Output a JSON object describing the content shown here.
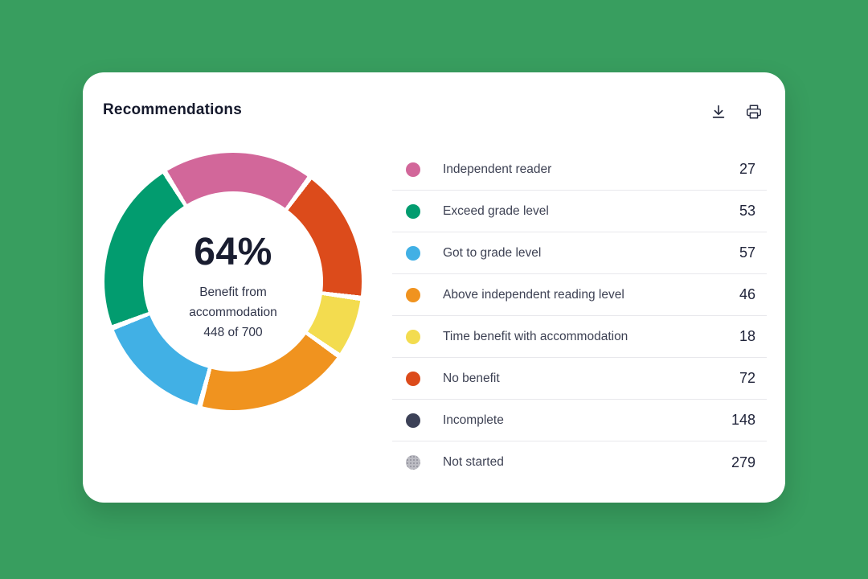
{
  "theme": {
    "page_background": "#389e5f",
    "card_background": "#ffffff",
    "divider_color": "#e8e8ec",
    "title_color": "#15192c",
    "label_color": "#3e4254",
    "value_color": "#20243a"
  },
  "header": {
    "title": "Recommendations",
    "actions": [
      {
        "name": "download",
        "icon": "download-icon"
      },
      {
        "name": "print",
        "icon": "print-icon"
      }
    ]
  },
  "chart_data": {
    "type": "pie",
    "title": "Recommendations",
    "legend_position": "right",
    "categories": [
      "Independent reader",
      "Exceed grade level",
      "Got to grade level",
      "Above independent reading level",
      "Time benefit with accommodation",
      "No benefit",
      "Incomplete",
      "Not started"
    ],
    "values": [
      27,
      53,
      57,
      46,
      18,
      72,
      148,
      279
    ],
    "center": {
      "percent": "64%",
      "caption_line1": "Benefit from",
      "caption_line2": "accommodation",
      "caption_line3": "448 of 700"
    },
    "donut": {
      "rotation": 328,
      "ring_outer_diameter": 320,
      "ring_inner_diameter": 224,
      "segments": [
        {
          "label": "Independent reader",
          "color": "#d2679a",
          "sweep": 68.5
        },
        {
          "label": "No benefit",
          "color": "#dc4b1b",
          "sweep": 61
        },
        {
          "label": "Time benefit with accommodation",
          "color": "#f3dc4f",
          "sweep": 27.5
        },
        {
          "label": "Above independent reading level",
          "color": "#f0931f",
          "sweep": 70
        },
        {
          "label": "Got to grade level",
          "color": "#41b0e5",
          "sweep": 54
        },
        {
          "label": "Exceed grade level",
          "color": "#029c6f",
          "sweep": 79
        }
      ]
    }
  },
  "legend": {
    "items": [
      {
        "label": "Independent reader",
        "value": "27",
        "color": "#d2679a"
      },
      {
        "label": "Exceed grade level",
        "value": "53",
        "color": "#029c6f"
      },
      {
        "label": "Got to grade level",
        "value": "57",
        "color": "#41b0e5"
      },
      {
        "label": "Above independent reading level",
        "value": "46",
        "color": "#f0931f"
      },
      {
        "label": "Time benefit with accommodation",
        "value": "18",
        "color": "#f3dc4f"
      },
      {
        "label": "No benefit",
        "value": "72",
        "color": "#dc4b1b"
      },
      {
        "label": "Incomplete",
        "value": "148",
        "color": "#3c4157"
      },
      {
        "label": "Not started",
        "value": "279",
        "color": "#bcbcc3",
        "pattern": "dots"
      }
    ]
  }
}
